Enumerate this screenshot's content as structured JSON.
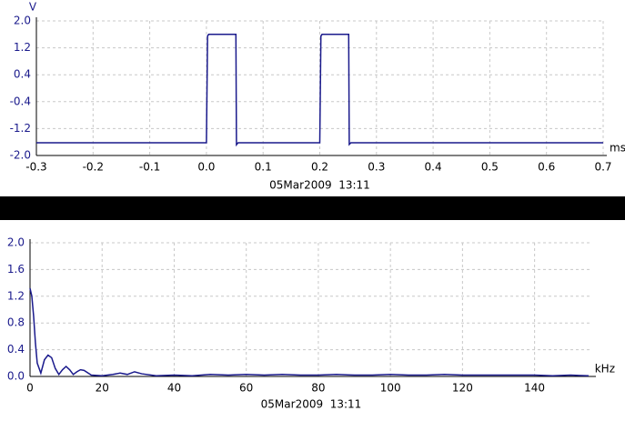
{
  "chart_data": [
    {
      "type": "line",
      "y_label": "V",
      "x_label": "ms",
      "caption": "05Mar2009  13:11",
      "color": "#1a1a8c",
      "grid": true,
      "xlim": [
        -0.3,
        0.7
      ],
      "xticks": [
        -0.3,
        -0.2,
        -0.1,
        {
          "value": 0,
          "label": "0.0"
        },
        0.1,
        0.2,
        0.3,
        0.4,
        0.5,
        0.6,
        0.7
      ],
      "ylim": [
        -2,
        2
      ],
      "yticks": [
        {
          "value": 2,
          "label": "2.0"
        },
        1.2,
        0.4,
        -0.4,
        -1.2,
        {
          "value": -2,
          "label": "-2.0"
        }
      ],
      "x": [
        -0.3,
        0.0,
        0.002,
        0.004,
        0.051,
        0.052,
        0.053,
        0.056,
        0.2,
        0.202,
        0.204,
        0.25,
        0.251,
        0.252,
        0.255,
        0.7
      ],
      "values": [
        -1.62,
        -1.62,
        1.55,
        1.6,
        1.6,
        1.6,
        -1.68,
        -1.62,
        -1.62,
        1.55,
        1.6,
        1.6,
        1.6,
        -1.67,
        -1.62,
        -1.62
      ]
    },
    {
      "type": "line",
      "x_label": "kHz",
      "caption": "05Mar2009  13:11",
      "color": "#1a1a8c",
      "grid": true,
      "xlim": [
        0,
        156
      ],
      "xticks": [
        0,
        20,
        40,
        60,
        80,
        100,
        120,
        140
      ],
      "ylim": [
        0,
        2
      ],
      "yticks": [
        {
          "value": 0,
          "label": "0.0"
        },
        0.4,
        0.8,
        1.2,
        1.6,
        {
          "value": 2,
          "label": "2.0"
        }
      ],
      "x": [
        0,
        0.5,
        1,
        1.5,
        2,
        3,
        4,
        5,
        6,
        7,
        8,
        9,
        10,
        11,
        12,
        13,
        14,
        15,
        17,
        20,
        23,
        25,
        27,
        29,
        31,
        35,
        40,
        45,
        50,
        55,
        60,
        65,
        70,
        75,
        80,
        85,
        90,
        95,
        100,
        105,
        110,
        115,
        120,
        125,
        130,
        135,
        140,
        145,
        150,
        155
      ],
      "values": [
        1.32,
        1.2,
        0.9,
        0.5,
        0.2,
        0.05,
        0.25,
        0.32,
        0.28,
        0.12,
        0.03,
        0.1,
        0.15,
        0.1,
        0.03,
        0.07,
        0.1,
        0.09,
        0.02,
        0.01,
        0.03,
        0.05,
        0.03,
        0.07,
        0.04,
        0.01,
        0.02,
        0.01,
        0.03,
        0.02,
        0.03,
        0.02,
        0.03,
        0.02,
        0.02,
        0.03,
        0.02,
        0.02,
        0.03,
        0.02,
        0.02,
        0.03,
        0.02,
        0.02,
        0.02,
        0.02,
        0.02,
        0.01,
        0.02,
        0.01
      ]
    }
  ]
}
